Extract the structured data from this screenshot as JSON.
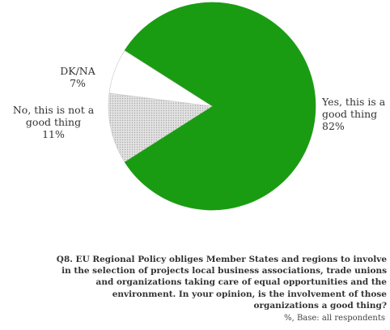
{
  "chart_data": {
    "type": "pie",
    "slices": [
      {
        "label": "Yes, this is a good thing",
        "label_lines": [
          "Yes, this is a",
          "good thing"
        ],
        "value": 82,
        "value_label": "82%",
        "color": "#1a9c12"
      },
      {
        "label": "No, this is not a good thing",
        "label_lines": [
          "No, this is not a",
          "good thing"
        ],
        "value": 11,
        "value_label": "11%",
        "color": "#d6d6d6"
      },
      {
        "label": "DK/NA",
        "label_lines": [
          "DK/NA"
        ],
        "value": 7,
        "value_label": "7%",
        "color": "#ffffff"
      }
    ]
  },
  "question": {
    "lines": [
      "Q8. EU Regional Policy obliges Member States and regions to involve",
      "in the selection of projects local business associations, trade unions",
      "and organizations taking care of equal opportunities and the",
      "environment. In your opinion, is the involvement of those",
      "organizations a good thing?"
    ]
  },
  "base_note": "%, Base: all respondents"
}
